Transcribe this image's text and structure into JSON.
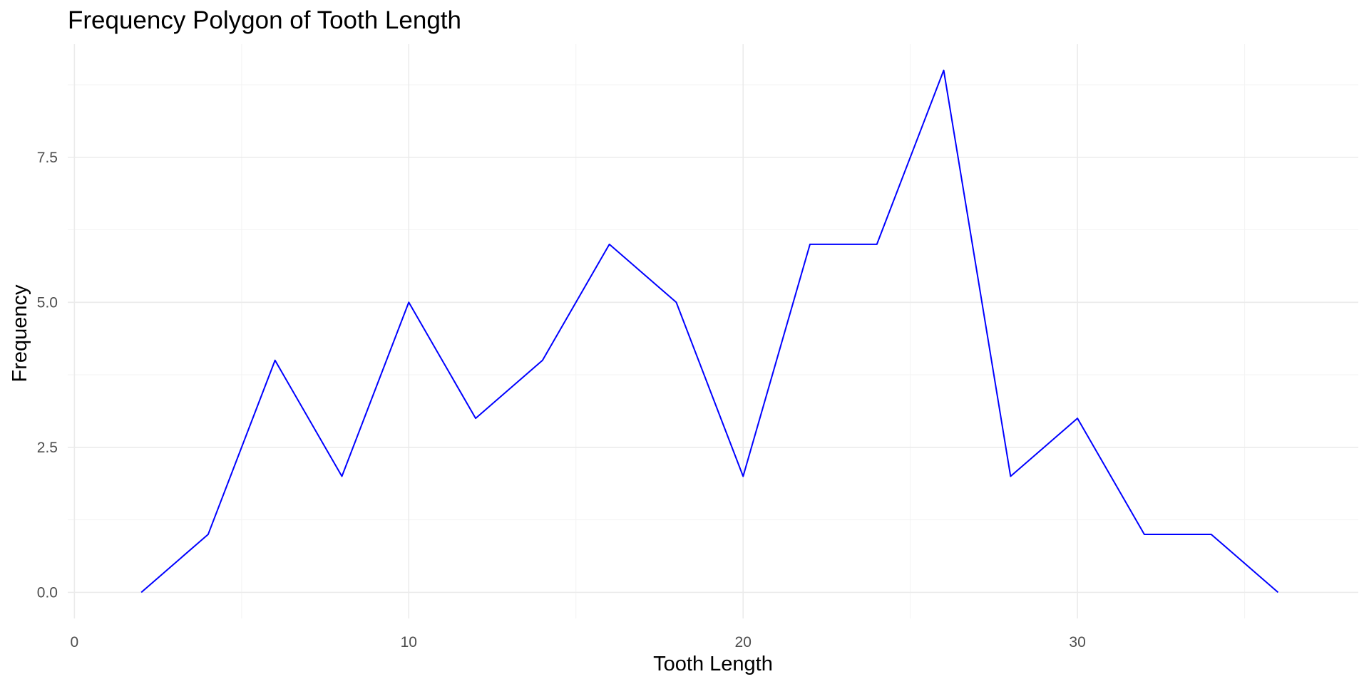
{
  "chart_data": {
    "type": "line",
    "title": "Frequency Polygon of Tooth Length",
    "xlabel": "Tooth Length",
    "ylabel": "Frequency",
    "xlim": [
      -0.2,
      38.4
    ],
    "ylim": [
      -0.45,
      9.45
    ],
    "x_ticks": [
      0,
      10,
      20,
      30
    ],
    "x_tick_labels": [
      "0",
      "10",
      "20",
      "30"
    ],
    "x_minor_ticks": [
      5,
      15,
      25,
      35
    ],
    "y_ticks": [
      0,
      2.5,
      5,
      7.5
    ],
    "y_tick_labels": [
      "0.0",
      "2.5",
      "5.0",
      "7.5"
    ],
    "y_minor_ticks": [
      1.25,
      3.75,
      6.25,
      8.75
    ],
    "grid": true,
    "line_color": "#0000ff",
    "series": [
      {
        "x": [
          2,
          4,
          6,
          8,
          10,
          12,
          14,
          16,
          18,
          20,
          22,
          24,
          26,
          28,
          30,
          32,
          34,
          36
        ],
        "values": [
          0,
          1,
          4,
          2,
          5,
          3,
          4,
          6,
          5,
          2,
          6,
          6,
          9,
          2,
          3,
          1,
          1,
          0
        ]
      }
    ]
  }
}
